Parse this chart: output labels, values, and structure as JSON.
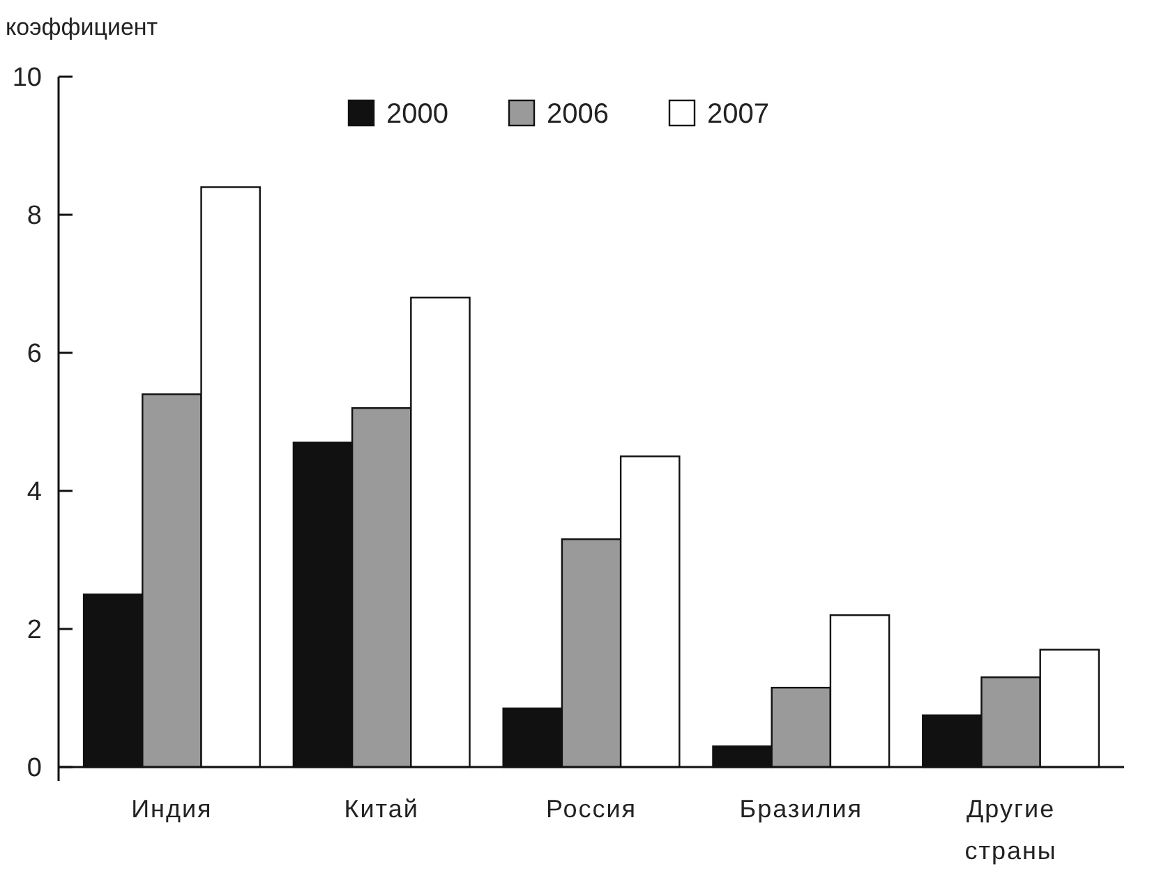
{
  "chart_data": {
    "type": "bar",
    "ylabel": "коэффициент",
    "categories": [
      "Индия",
      "Китай",
      "Россия",
      "Бразилия",
      "Другие страны"
    ],
    "series": [
      {
        "name": "2000",
        "color": "#111111",
        "values": [
          2.5,
          4.7,
          0.85,
          0.3,
          0.75
        ]
      },
      {
        "name": "2006",
        "color": "#9a9a9a",
        "values": [
          5.4,
          5.2,
          3.3,
          1.15,
          1.3
        ]
      },
      {
        "name": "2007",
        "color": "#ffffff",
        "values": [
          8.4,
          6.8,
          4.5,
          2.2,
          1.7
        ]
      }
    ],
    "ylim": [
      0,
      10
    ],
    "yticks": [
      0,
      2,
      4,
      6,
      8,
      10
    ],
    "grid": false,
    "legend": "top"
  }
}
